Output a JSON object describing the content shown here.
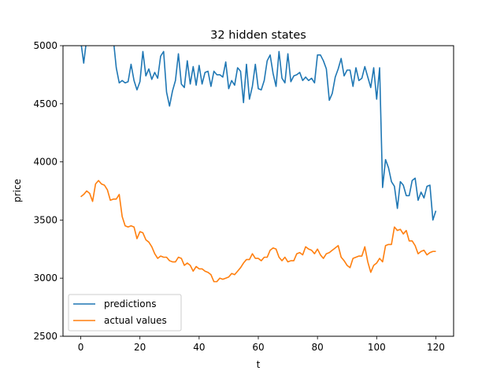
{
  "chart_data": {
    "type": "line",
    "title": "32 hidden states",
    "xlabel": "t",
    "ylabel": "price",
    "xlim": [
      -6,
      126
    ],
    "ylim": [
      2500,
      5000
    ],
    "xticks": [
      0,
      20,
      40,
      60,
      80,
      100,
      120
    ],
    "yticks": [
      2500,
      3000,
      3500,
      4000,
      4500,
      5000
    ],
    "legend_position": "lower-left",
    "grid": false,
    "series": [
      {
        "name": "predictions",
        "color": "#1f77b4",
        "values": [
          5040,
          4850,
          5060,
          5100,
          5120,
          5130,
          5160,
          5140,
          5120,
          5100,
          5080,
          5060,
          4810,
          4680,
          4700,
          4680,
          4690,
          4840,
          4700,
          4620,
          4690,
          4950,
          4740,
          4800,
          4710,
          4770,
          4720,
          4910,
          4950,
          4600,
          4480,
          4610,
          4700,
          4930,
          4670,
          4640,
          4870,
          4670,
          4820,
          4660,
          4830,
          4670,
          4770,
          4780,
          4650,
          4780,
          4750,
          4750,
          4730,
          4860,
          4630,
          4700,
          4660,
          4810,
          4780,
          4510,
          4840,
          4540,
          4650,
          4840,
          4630,
          4620,
          4700,
          4870,
          4920,
          4760,
          4650,
          4950,
          4720,
          4680,
          4930,
          4690,
          4740,
          4750,
          4770,
          4700,
          4730,
          4700,
          4720,
          4680,
          4920,
          4920,
          4870,
          4800,
          4530,
          4590,
          4730,
          4800,
          4890,
          4740,
          4790,
          4790,
          4650,
          4810,
          4700,
          4720,
          4820,
          4730,
          4640,
          4810,
          4540,
          4810,
          3780,
          4020,
          3950,
          3830,
          3790,
          3600,
          3830,
          3800,
          3710,
          3710,
          3840,
          3860,
          3670,
          3740,
          3690,
          3790,
          3800,
          3500,
          3580
        ]
      },
      {
        "name": "actual values",
        "color": "#ff7f0e",
        "values": [
          3700,
          3720,
          3750,
          3730,
          3660,
          3810,
          3840,
          3810,
          3800,
          3760,
          3670,
          3680,
          3680,
          3720,
          3530,
          3450,
          3440,
          3450,
          3440,
          3340,
          3400,
          3390,
          3330,
          3310,
          3270,
          3210,
          3170,
          3190,
          3180,
          3180,
          3150,
          3140,
          3140,
          3180,
          3170,
          3110,
          3130,
          3110,
          3060,
          3100,
          3080,
          3080,
          3060,
          3050,
          3030,
          2970,
          2970,
          3000,
          2990,
          3000,
          3010,
          3040,
          3030,
          3060,
          3090,
          3130,
          3160,
          3160,
          3210,
          3170,
          3170,
          3150,
          3180,
          3180,
          3240,
          3260,
          3250,
          3180,
          3150,
          3180,
          3140,
          3150,
          3150,
          3210,
          3220,
          3200,
          3270,
          3250,
          3240,
          3210,
          3250,
          3200,
          3170,
          3210,
          3220,
          3240,
          3260,
          3280,
          3180,
          3150,
          3110,
          3090,
          3170,
          3180,
          3190,
          3190,
          3270,
          3140,
          3050,
          3110,
          3130,
          3170,
          3140,
          3280,
          3290,
          3290,
          3440,
          3410,
          3420,
          3380,
          3410,
          3320,
          3320,
          3280,
          3210,
          3230,
          3240,
          3200,
          3220,
          3230,
          3230
        ]
      }
    ]
  }
}
